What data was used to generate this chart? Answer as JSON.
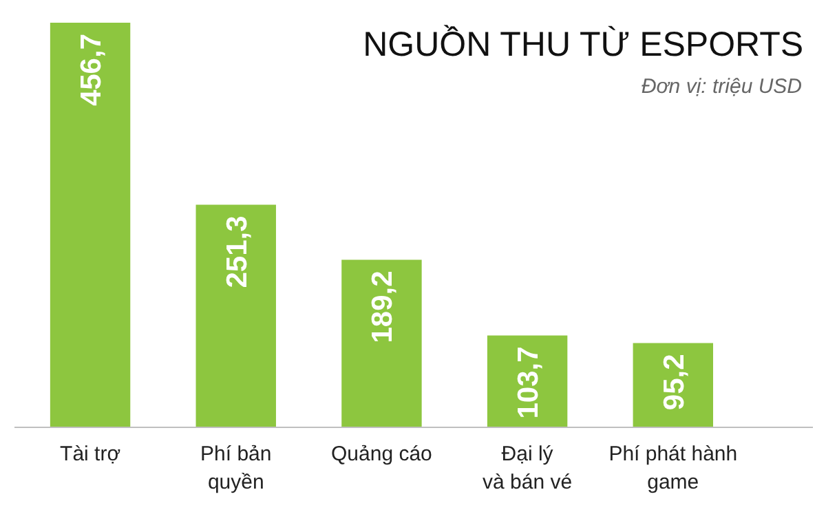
{
  "chart_data": {
    "type": "bar",
    "title": "NGUỒN THU TỪ ESPORTS",
    "subtitle": "Đơn vị: triệu USD",
    "categories": [
      "Tài trợ",
      "Phí bản\nquyền",
      "Quảng cáo",
      "Đại lý\nvà bán vé",
      "Phí phát hành\ngame"
    ],
    "values": [
      456.7,
      251.3,
      189.2,
      103.7,
      95.2
    ],
    "value_labels": [
      "456,7",
      "251,3",
      "189,2",
      "103,7",
      "95,2"
    ],
    "color": "#8dc63f",
    "grid": false
  }
}
